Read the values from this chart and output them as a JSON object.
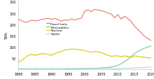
{
  "ylabel": "TWh",
  "xlim": [
    1980,
    2020
  ],
  "ylim": [
    0,
    300
  ],
  "yticks": [
    50,
    100,
    150,
    200,
    250,
    300
  ],
  "xticks": [
    1980,
    1985,
    1990,
    1995,
    2000,
    2005,
    2010,
    2015,
    2020
  ],
  "fossil_fuels": {
    "label": "Fossil fuels",
    "color": "#e8756a",
    "years": [
      1980,
      1981,
      1982,
      1983,
      1984,
      1985,
      1986,
      1987,
      1988,
      1989,
      1990,
      1991,
      1992,
      1993,
      1994,
      1995,
      1996,
      1997,
      1998,
      1999,
      2000,
      2001,
      2002,
      2003,
      2004,
      2005,
      2006,
      2007,
      2008,
      2009,
      2010,
      2011,
      2012,
      2013,
      2014,
      2015,
      2016,
      2017,
      2018,
      2019,
      2020
    ],
    "values": [
      222,
      216,
      208,
      212,
      218,
      215,
      217,
      222,
      224,
      226,
      222,
      226,
      220,
      214,
      219,
      217,
      224,
      219,
      224,
      227,
      258,
      263,
      256,
      266,
      263,
      260,
      256,
      250,
      246,
      228,
      243,
      223,
      236,
      226,
      213,
      192,
      178,
      163,
      148,
      138,
      128
    ]
  },
  "renewables": {
    "label": "Renewables",
    "color": "#7dc87d",
    "years": [
      1980,
      1981,
      1982,
      1983,
      1984,
      1985,
      1986,
      1987,
      1988,
      1989,
      1990,
      1991,
      1992,
      1993,
      1994,
      1995,
      1996,
      1997,
      1998,
      1999,
      2000,
      2001,
      2002,
      2003,
      2004,
      2005,
      2006,
      2007,
      2008,
      2009,
      2010,
      2011,
      2012,
      2013,
      2014,
      2015,
      2016,
      2017,
      2018,
      2019,
      2020
    ],
    "values": [
      1,
      1,
      1,
      1,
      1,
      1,
      1,
      1,
      1,
      1,
      1,
      1,
      1,
      1,
      2,
      2,
      2,
      2,
      3,
      3,
      4,
      4,
      5,
      5,
      6,
      7,
      8,
      9,
      11,
      14,
      18,
      25,
      34,
      44,
      58,
      70,
      79,
      87,
      94,
      99,
      104
    ]
  },
  "nuclear": {
    "label": "Nuclear",
    "color": "#d4c800",
    "years": [
      1980,
      1981,
      1982,
      1983,
      1984,
      1985,
      1986,
      1987,
      1988,
      1989,
      1990,
      1991,
      1992,
      1993,
      1994,
      1995,
      1996,
      1997,
      1998,
      1999,
      2000,
      2001,
      2002,
      2003,
      2004,
      2005,
      2006,
      2007,
      2008,
      2009,
      2010,
      2011,
      2012,
      2013,
      2014,
      2015,
      2016,
      2017,
      2018,
      2019,
      2020
    ],
    "values": [
      33,
      40,
      52,
      63,
      66,
      63,
      66,
      70,
      70,
      66,
      63,
      70,
      76,
      80,
      86,
      88,
      90,
      90,
      88,
      86,
      83,
      80,
      76,
      80,
      78,
      74,
      68,
      63,
      58,
      60,
      60,
      56,
      60,
      58,
      53,
      60,
      58,
      56,
      54,
      52,
      50
    ]
  },
  "hydro": {
    "label": "Hydro",
    "color": "#a8d8ea",
    "years": [
      1980,
      1981,
      1982,
      1983,
      1984,
      1985,
      1986,
      1987,
      1988,
      1989,
      1990,
      1991,
      1992,
      1993,
      1994,
      1995,
      1996,
      1997,
      1998,
      1999,
      2000,
      2001,
      2002,
      2003,
      2004,
      2005,
      2006,
      2007,
      2008,
      2009,
      2010,
      2011,
      2012,
      2013,
      2014,
      2015,
      2016,
      2017,
      2018,
      2019,
      2020
    ],
    "values": [
      4,
      4,
      4,
      4,
      4,
      4,
      4,
      4,
      4,
      4,
      4,
      4,
      4,
      4,
      4,
      4,
      4,
      4,
      4,
      4,
      4,
      4,
      4,
      4,
      4,
      4,
      4,
      4,
      4,
      4,
      4,
      4,
      5,
      5,
      6,
      7,
      8,
      9,
      9,
      10,
      10
    ]
  },
  "background_color": "#ffffff"
}
